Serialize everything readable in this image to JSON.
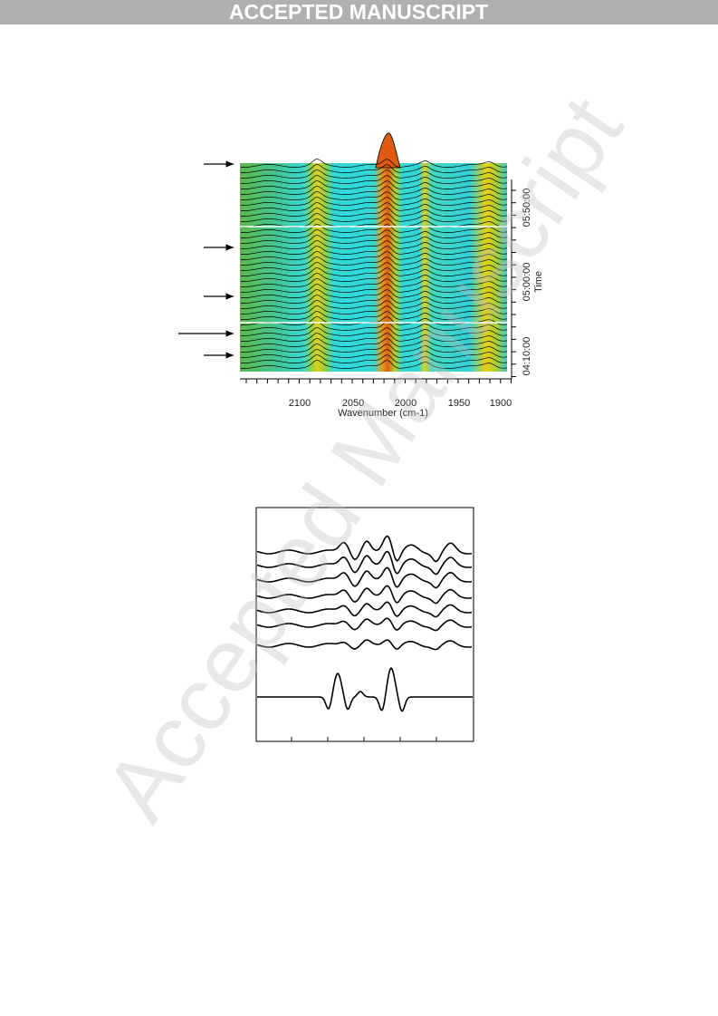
{
  "header": {
    "banner": "ACCEPTED MANUSCRIPT"
  },
  "figure1": {
    "xticks": [
      "2100",
      "2050",
      "2000",
      "1950",
      "1900"
    ],
    "xlabel": "Wavenumber (cm-1)",
    "yticks": [
      "04:10:00",
      "05:00:00",
      "05:50:00"
    ],
    "ylabel": "Time"
  },
  "watermark": "Accepted Manuscript"
}
